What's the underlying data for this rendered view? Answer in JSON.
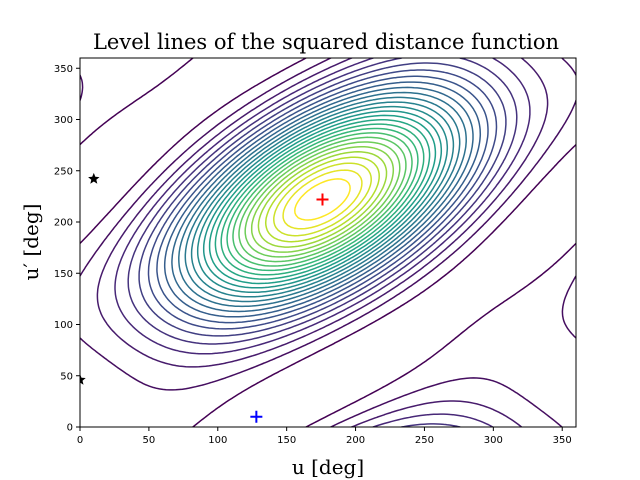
{
  "chart_data": {
    "type": "contour",
    "title": "Level lines of the squared distance function",
    "xlabel": "u [deg]",
    "ylabel": "u′ [deg]",
    "xlim": [
      0,
      360
    ],
    "ylim": [
      0,
      360
    ],
    "xticks": [
      "0",
      "50",
      "100",
      "150",
      "200",
      "250",
      "300",
      "350"
    ],
    "yticks": [
      "0",
      "50",
      "100",
      "150",
      "200",
      "250",
      "300",
      "350"
    ],
    "grid": false,
    "legend": "none",
    "colormap": "viridis",
    "maximum": {
      "x": 176,
      "y": 222,
      "color": "#ff0000",
      "marker": "plus"
    },
    "minimum": {
      "x": 128,
      "y": 10,
      "color": "#0000ff",
      "marker": "plus"
    },
    "critical_points": [
      {
        "x": 10,
        "y": 242,
        "marker": "star",
        "color": "#000000"
      },
      {
        "x": 0,
        "y": 46,
        "marker": "star",
        "color": "#000000"
      }
    ]
  }
}
